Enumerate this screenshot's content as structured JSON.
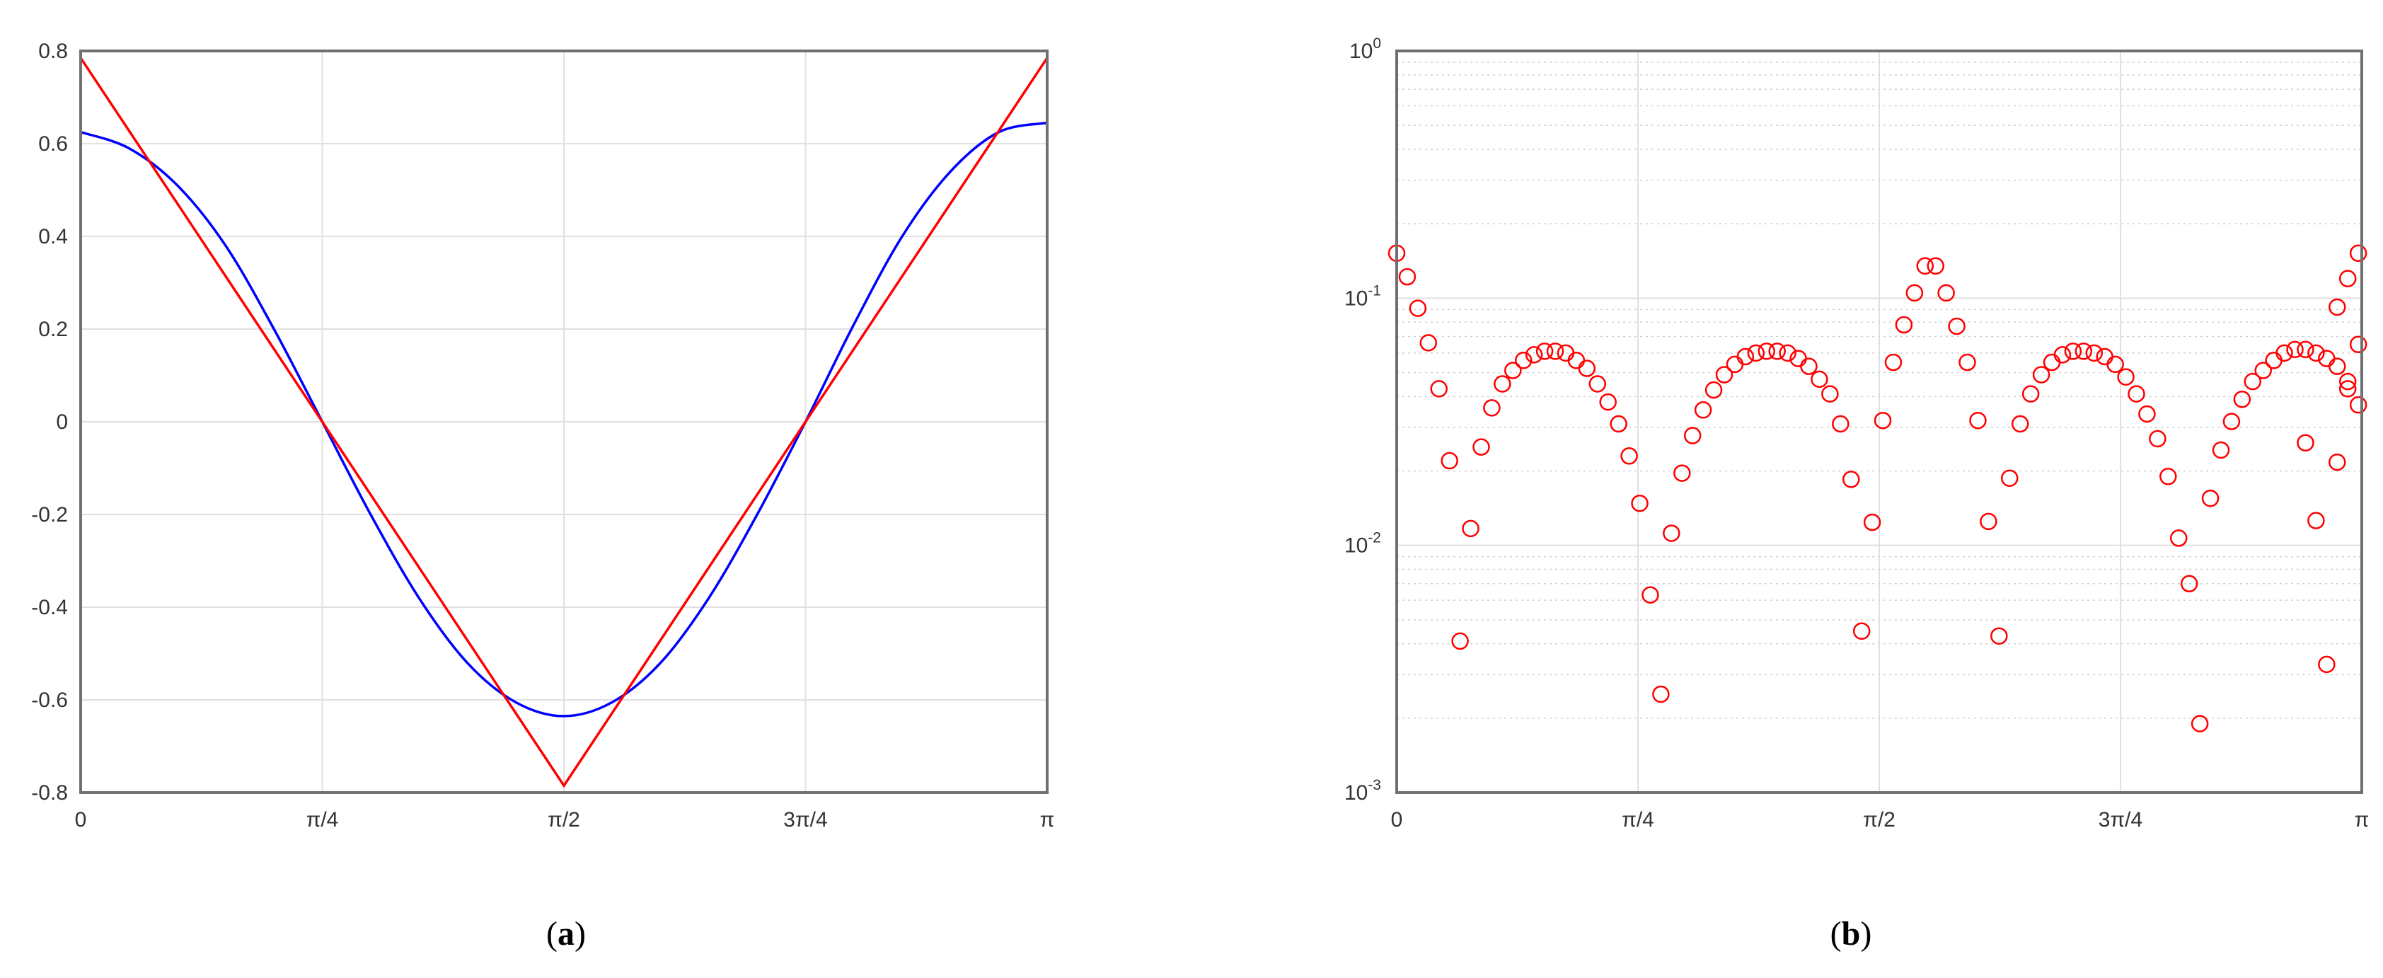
{
  "chart_data": [
    {
      "type": "line",
      "caption": "a",
      "xlim": [
        0,
        3.141592653589793
      ],
      "ylim": [
        -0.8,
        0.8
      ],
      "grid": true,
      "x_ticks": [
        {
          "value": 0,
          "label": "0"
        },
        {
          "value": 0.7853981633974483,
          "label": "π/4"
        },
        {
          "value": 1.5707963267948966,
          "label": "π/2"
        },
        {
          "value": 2.356194490192345,
          "label": "3π/4"
        },
        {
          "value": 3.141592653589793,
          "label": "π"
        }
      ],
      "y_ticks": [
        {
          "value": 0.8,
          "label": "0.8"
        },
        {
          "value": 0.6,
          "label": "0.6"
        },
        {
          "value": 0.4,
          "label": "0.4"
        },
        {
          "value": 0.2,
          "label": "0.2"
        },
        {
          "value": 0,
          "label": "0"
        },
        {
          "value": -0.2,
          "label": "-0.2"
        },
        {
          "value": -0.4,
          "label": "-0.4"
        },
        {
          "value": -0.6,
          "label": "-0.6"
        },
        {
          "value": -0.8,
          "label": "-0.8"
        }
      ],
      "series": [
        {
          "color": "#0000ff",
          "x": [
            0,
            0.1571,
            0.3142,
            0.4712,
            0.6283,
            0.7854,
            0.9425,
            1.0996,
            1.2566,
            1.4137,
            1.5708,
            1.7279,
            1.885,
            2.042,
            2.1991,
            2.3562,
            2.5133,
            2.6704,
            2.8274,
            2.9845,
            3.1416
          ],
          "y": [
            0.625,
            0.59,
            0.51,
            0.38,
            0.2,
            0.0,
            -0.2,
            -0.38,
            -0.52,
            -0.605,
            -0.635,
            -0.605,
            -0.52,
            -0.38,
            -0.2,
            0.0,
            0.21,
            0.4,
            0.54,
            0.625,
            0.645
          ]
        },
        {
          "color": "#ff0000",
          "x": [
            0,
            1.5708,
            3.1416
          ],
          "y": [
            0.785,
            -0.785,
            0.785
          ]
        }
      ]
    },
    {
      "type": "scatter",
      "caption": "b",
      "xlim": [
        0,
        3.141592653589793
      ],
      "ylim": [
        0.001,
        1
      ],
      "yscale": "log",
      "grid": true,
      "x_ticks": [
        {
          "value": 0,
          "label": "0"
        },
        {
          "value": 0.7853981633974483,
          "label": "π/4"
        },
        {
          "value": 1.5707963267948966,
          "label": "π/2"
        },
        {
          "value": 2.356194490192345,
          "label": "3π/4"
        },
        {
          "value": 3.141592653589793,
          "label": "π"
        }
      ],
      "y_ticks": [
        {
          "value": 1,
          "base": "10",
          "exp": "0"
        },
        {
          "value": 0.1,
          "base": "10",
          "exp": "-1"
        },
        {
          "value": 0.01,
          "base": "10",
          "exp": "-2"
        },
        {
          "value": 0.001,
          "base": "10",
          "exp": "-3"
        }
      ],
      "series": [
        {
          "color": "#ff0000",
          "marker": "circle-open",
          "x": [
            0.0,
            0.0344,
            0.0688,
            0.1032,
            0.1376,
            0.172,
            0.2064,
            0.2408,
            0.2752,
            0.3096,
            0.344,
            0.3784,
            0.4128,
            0.4472,
            0.4816,
            0.516,
            0.5504,
            0.5848,
            0.6192,
            0.6536,
            0.688,
            0.7224,
            0.7568,
            0.7912,
            0.8256,
            0.86,
            0.8944,
            0.9288,
            0.9632,
            0.9976,
            1.032,
            1.0664,
            1.1008,
            1.1352,
            1.1696,
            1.204,
            1.2384,
            1.2728,
            1.3072,
            1.3416,
            1.376,
            1.4104,
            1.4448,
            1.4792,
            1.5136,
            1.548,
            1.5824,
            1.6168,
            1.6512,
            1.6856,
            1.72,
            1.7544,
            1.7888,
            1.8232,
            1.8576,
            1.892,
            1.9264,
            1.9608,
            1.9952,
            2.0296,
            2.064,
            2.0984,
            2.1328,
            2.1672,
            2.2016,
            2.236,
            2.2704,
            2.3048,
            2.3392,
            2.3736,
            2.408,
            2.4424,
            2.4768,
            2.5112,
            2.5456,
            2.58,
            2.6144,
            2.6488,
            2.6832,
            2.7176,
            2.752,
            2.7864,
            2.8208,
            2.8552,
            2.8896,
            2.924,
            2.9584,
            2.9928,
            3.0272,
            3.0616,
            3.096,
            3.1304
          ],
          "y": [
            0.152,
            0.122,
            0.091,
            0.066,
            0.043,
            0.022,
            0.0041,
            0.0117,
            0.025,
            0.036,
            0.045,
            0.051,
            0.056,
            0.059,
            0.061,
            0.061,
            0.06,
            0.056,
            0.052,
            0.045,
            0.038,
            0.031,
            0.023,
            0.0148,
            0.0063,
            0.0025,
            0.0112,
            0.0196,
            0.0278,
            0.0353,
            0.0425,
            0.049,
            0.054,
            0.058,
            0.06,
            0.061,
            0.061,
            0.06,
            0.057,
            0.053,
            0.047,
            0.041,
            0.031,
            0.0185,
            0.0045,
            0.0124,
            0.032,
            0.055,
            0.078,
            0.105,
            0.135,
            0.135,
            0.105,
            0.077,
            0.055,
            0.032,
            0.0125,
            0.0043,
            0.0187,
            0.031,
            0.041,
            0.049,
            0.055,
            0.059,
            0.061,
            0.061,
            0.06,
            0.058,
            0.054,
            0.048,
            0.041,
            0.034,
            0.027,
            0.019,
            0.0107,
            0.007,
            0.0019,
            0.0155,
            0.0243,
            0.0317,
            0.039,
            0.046,
            0.051,
            0.056,
            0.06,
            0.062,
            0.062,
            0.06,
            0.057,
            0.053,
            0.046,
            0.037
          ]
        },
        {
          "color": "#ff0000",
          "marker": "circle-open",
          "x": [
            2.9584,
            2.9928,
            3.0272,
            3.0616,
            3.096,
            3.1304
          ],
          "y": [
            0.026,
            0.0126,
            0.0033,
            0.0217,
            0.043,
            0.065
          ]
        },
        {
          "color": "#ff0000",
          "marker": "circle-open",
          "x": [
            3.0616,
            3.096,
            3.1304
          ],
          "y": [
            0.092,
            0.12,
            0.152
          ]
        }
      ]
    }
  ],
  "captions": {
    "a": "a",
    "b": "b"
  }
}
